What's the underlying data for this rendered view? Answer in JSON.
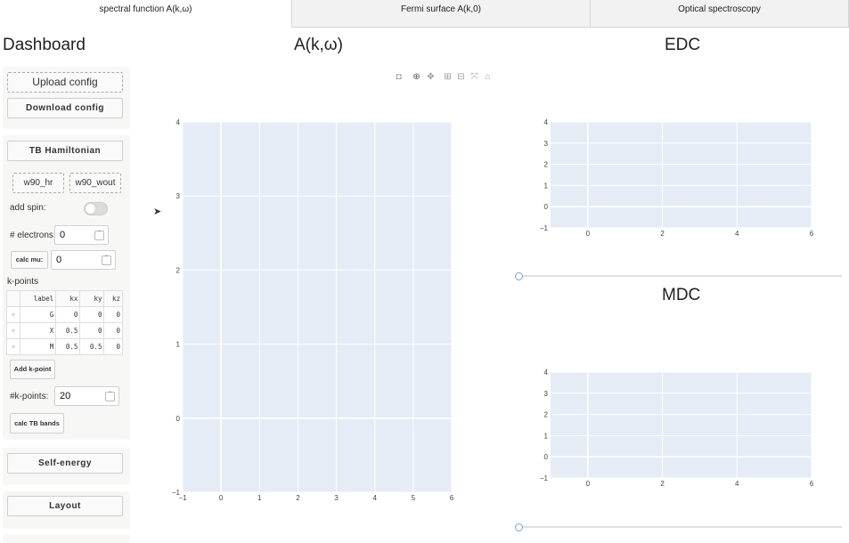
{
  "tabs": [
    {
      "label": "spectral function A(k,ω)",
      "active": true
    },
    {
      "label": "Fermi surface A(k,0)",
      "active": false
    },
    {
      "label": "Optical spectroscopy",
      "active": false
    }
  ],
  "sidebar": {
    "title": "Dashboard",
    "upload_label": "Upload config",
    "download_label": "Download config",
    "tb_section_label": "TB Hamiltonian",
    "w90_hr_label": "w90_hr",
    "w90_wout_label": "w90_wout",
    "add_spin_label": "add spin:",
    "add_spin_value": false,
    "electrons_label": "# electrons:",
    "electrons_value": "0",
    "calc_mu_label": "calc mu:",
    "mu_value": "0",
    "kpoints_label": "k-points",
    "kpoints_table": {
      "columns": [
        "label",
        "kx",
        "ky",
        "kz"
      ],
      "rows": [
        {
          "label": "G",
          "kx": "0",
          "ky": "0",
          "kz": "0"
        },
        {
          "label": "X",
          "kx": "0.5",
          "ky": "0",
          "kz": "0"
        },
        {
          "label": "M",
          "kx": "0.5",
          "ky": "0.5",
          "kz": "0"
        }
      ]
    },
    "add_kpoint_label": "Add k-point",
    "nk_label": "#k-points:",
    "nk_value": "20",
    "calc_bands_label": "calc TB bands",
    "self_energy_label": "Self-energy",
    "layout_label": "Layout"
  },
  "colors": {
    "plot_bg": "#e5ecf6",
    "grid": "#ffffff",
    "slider_handle": "#7aa3d0"
  },
  "chart_data": [
    {
      "type": "line",
      "title": "A(k,ω)",
      "xlim": [
        -1,
        6
      ],
      "ylim": [
        -1,
        4
      ],
      "x_ticks": [
        "−1",
        "0",
        "1",
        "2",
        "3",
        "4",
        "5",
        "6"
      ],
      "y_ticks": [
        "−1",
        "0",
        "1",
        "2",
        "3",
        "4"
      ],
      "series": []
    },
    {
      "type": "line",
      "title": "EDC",
      "xlim": [
        -1,
        6
      ],
      "ylim": [
        -1,
        4
      ],
      "x_ticks": [
        "0",
        "2",
        "4",
        "6"
      ],
      "y_ticks": [
        "−1",
        "0",
        "1",
        "2",
        "3",
        "4"
      ],
      "series": []
    },
    {
      "type": "line",
      "title": "MDC",
      "xlim": [
        -1,
        6
      ],
      "ylim": [
        -1,
        4
      ],
      "x_ticks": [
        "0",
        "2",
        "4",
        "6"
      ],
      "y_ticks": [
        "−1",
        "0",
        "1",
        "2",
        "3",
        "4"
      ],
      "series": []
    }
  ]
}
